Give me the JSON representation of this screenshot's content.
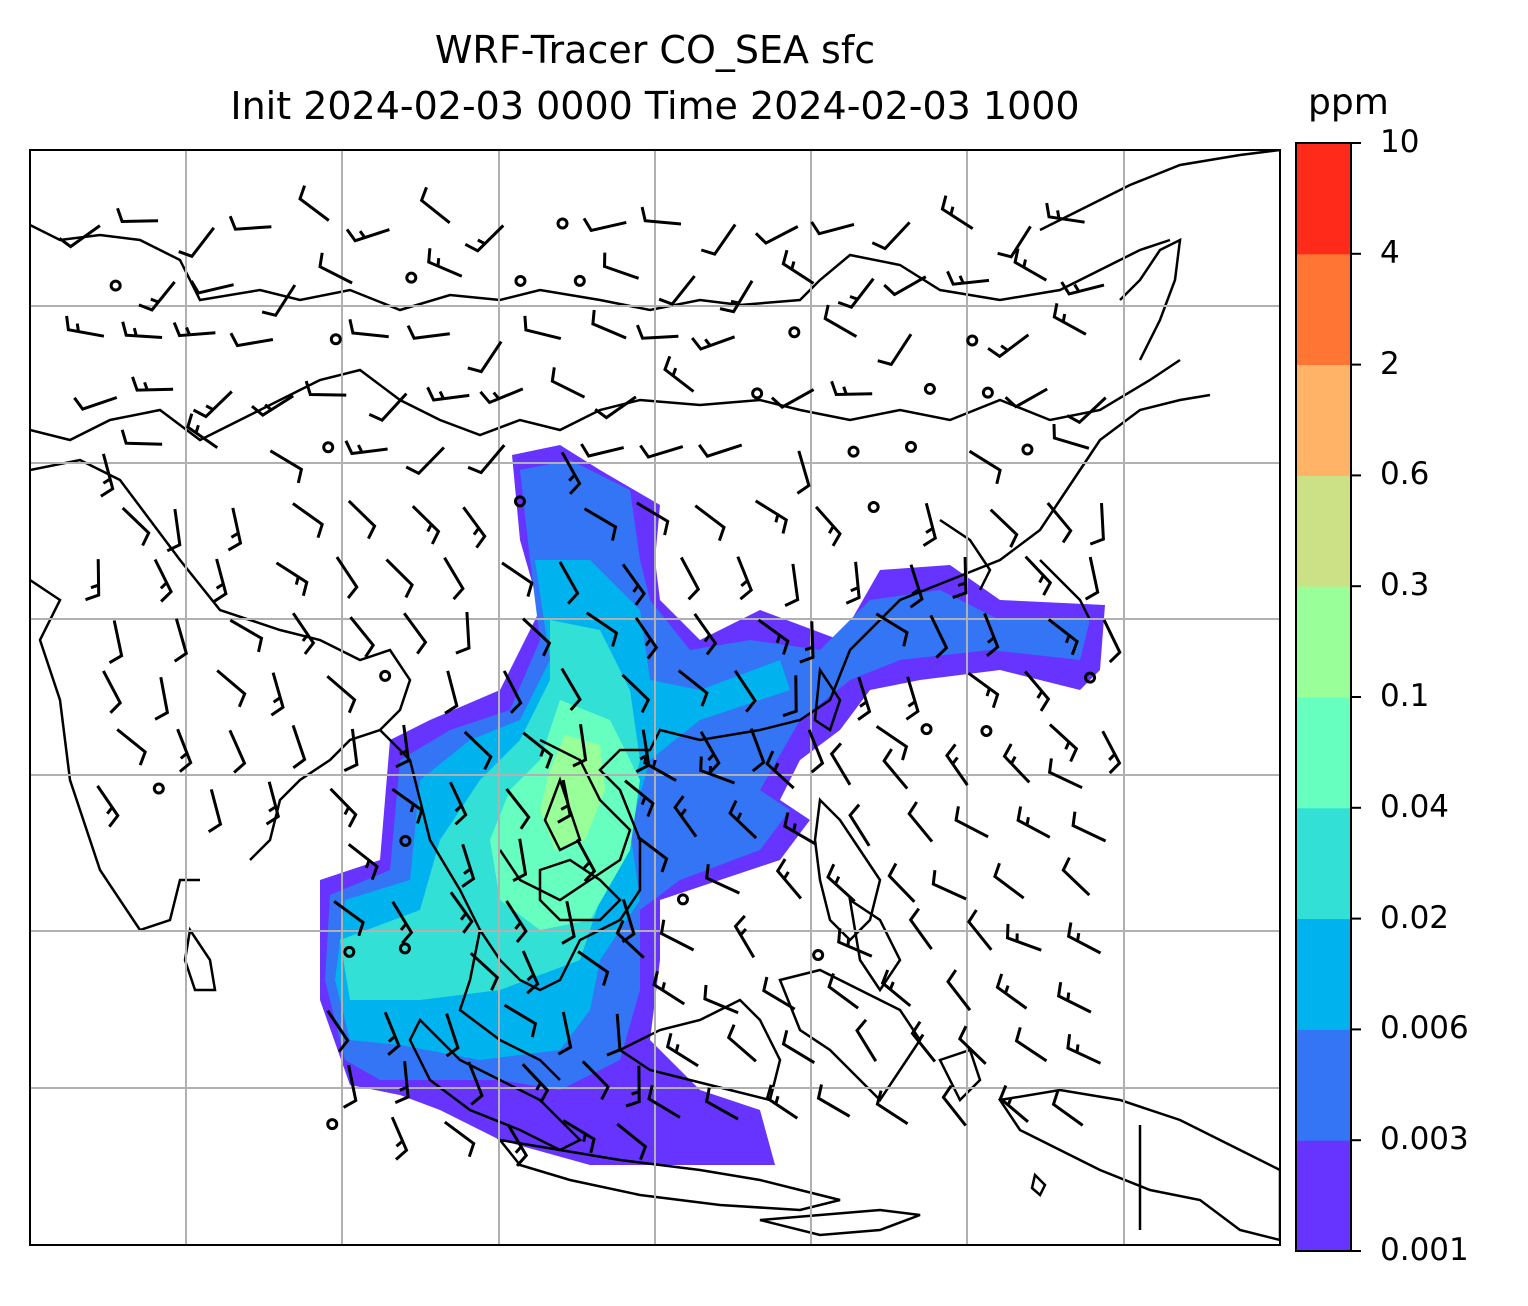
{
  "title": {
    "line1": "WRF-Tracer CO_SEA sfc",
    "line2": "Init 2024-02-03 0000 Time 2024-02-03 1000"
  },
  "colorbar": {
    "unit": "ppm",
    "levels": [
      "0.001",
      "0.003",
      "0.006",
      "0.02",
      "0.04",
      "0.1",
      "0.3",
      "0.6",
      "2",
      "4",
      "10"
    ],
    "colors": [
      "#6633ff",
      "#3375f5",
      "#00b3ee",
      "#33e0d6",
      "#66ffbf",
      "#99ff99",
      "#cce085",
      "#ffb366",
      "#ff7533",
      "#ff2a1a"
    ]
  },
  "map": {
    "field": "CO_SEA",
    "level": "sfc",
    "grid": "on"
  }
}
